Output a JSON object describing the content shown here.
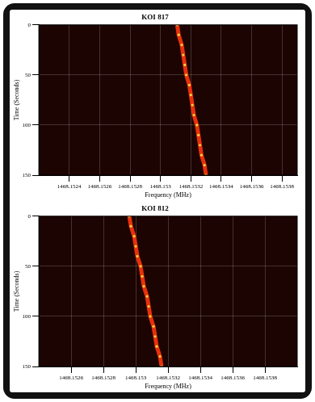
{
  "chart_data": [
    {
      "type": "line",
      "title": "KOI 817",
      "x_label": "Frequency (MHz)",
      "y_label": "Time (Seconds)",
      "x": [
        1468.15311,
        1468.15312,
        1468.15314,
        1468.15315,
        1468.15316,
        1468.15317,
        1468.15319,
        1468.1532,
        1468.15321,
        1468.15322,
        1468.15324,
        1468.15325,
        1468.15326,
        1468.15327,
        1468.15329,
        1468.1533
      ],
      "values": [
        0,
        10,
        20,
        30,
        40,
        50,
        60,
        70,
        80,
        90,
        100,
        110,
        120,
        130,
        140,
        150
      ],
      "color": "#e8300c",
      "marker": "circle",
      "xlim": [
        1468.1522,
        1468.1539
      ],
      "xticks": [
        1468.1524,
        1468.1526,
        1468.1528,
        1468.153,
        1468.1532,
        1468.1534,
        1468.1536,
        1468.1538
      ],
      "ylim": [
        0,
        150
      ],
      "yticks": [
        0,
        50,
        100,
        150
      ],
      "grid": true
    },
    {
      "type": "line",
      "title": "KOI 812",
      "x_label": "Frequency (MHz)",
      "y_label": "Time (Seconds)",
      "x": [
        1468.15296,
        1468.15297,
        1468.15299,
        1468.153,
        1468.15301,
        1468.15303,
        1468.15304,
        1468.15305,
        1468.15307,
        1468.15308,
        1468.15309,
        1468.15311,
        1468.15312,
        1468.15313,
        1468.15315,
        1468.15316
      ],
      "values": [
        0,
        10,
        20,
        30,
        40,
        50,
        60,
        70,
        80,
        90,
        100,
        110,
        120,
        130,
        140,
        150
      ],
      "color": "#e8300c",
      "marker": "circle",
      "xlim": [
        1468.1524,
        1468.154
      ],
      "xticks": [
        1468.1526,
        1468.1528,
        1468.153,
        1468.1532,
        1468.1534,
        1468.1536,
        1468.1538
      ],
      "ylim": [
        0,
        150
      ],
      "yticks": [
        0,
        50,
        100,
        150
      ],
      "grid": true
    }
  ]
}
